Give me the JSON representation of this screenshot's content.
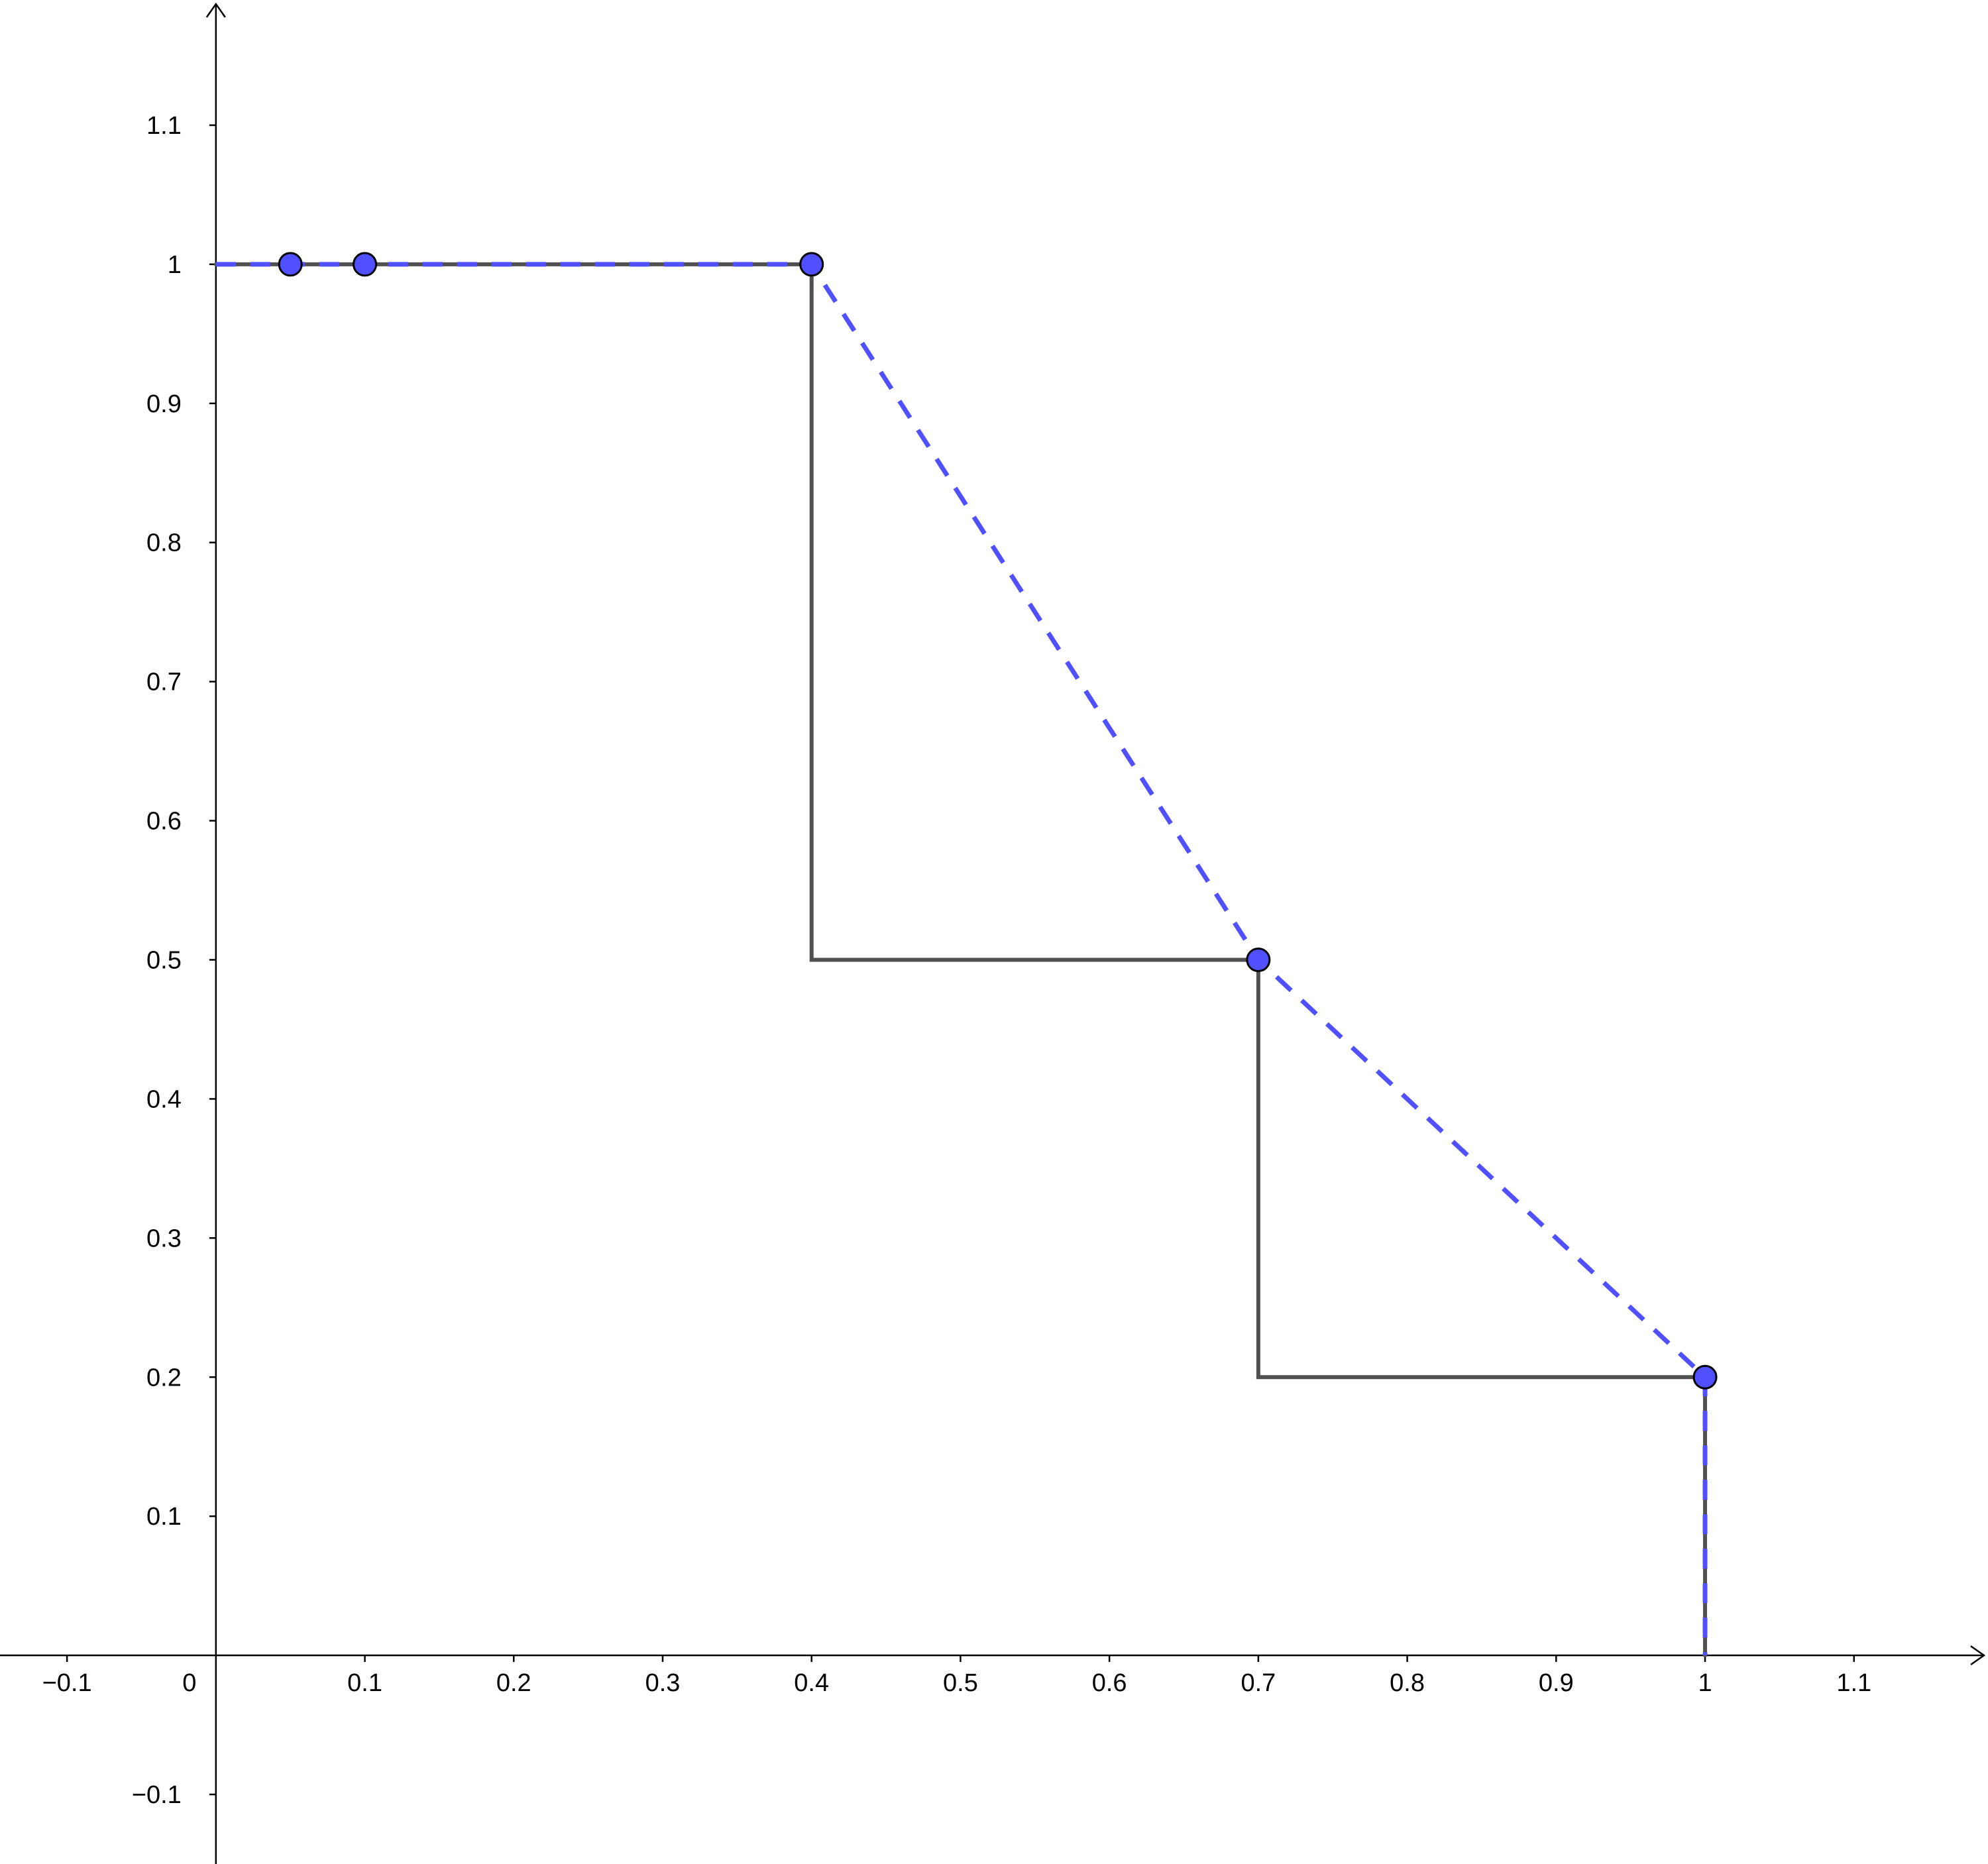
{
  "chart_data": {
    "type": "line",
    "xlim": [
      -0.145,
      1.19
    ],
    "ylim": [
      -0.15,
      1.19
    ],
    "x_ticks": [
      {
        "value": -0.1,
        "label": "−0.1"
      },
      {
        "value": 0,
        "label": "0"
      },
      {
        "value": 0.1,
        "label": "0.1"
      },
      {
        "value": 0.2,
        "label": "0.2"
      },
      {
        "value": 0.3,
        "label": "0.3"
      },
      {
        "value": 0.4,
        "label": "0.4"
      },
      {
        "value": 0.5,
        "label": "0.5"
      },
      {
        "value": 0.6,
        "label": "0.6"
      },
      {
        "value": 0.7,
        "label": "0.7"
      },
      {
        "value": 0.8,
        "label": "0.8"
      },
      {
        "value": 0.9,
        "label": "0.9"
      },
      {
        "value": 1,
        "label": "1"
      },
      {
        "value": 1.1,
        "label": "1.1"
      }
    ],
    "y_ticks": [
      {
        "value": -0.1,
        "label": "−0.1"
      },
      {
        "value": 0.1,
        "label": "0.1"
      },
      {
        "value": 0.2,
        "label": "0.2"
      },
      {
        "value": 0.3,
        "label": "0.3"
      },
      {
        "value": 0.4,
        "label": "0.4"
      },
      {
        "value": 0.5,
        "label": "0.5"
      },
      {
        "value": 0.6,
        "label": "0.6"
      },
      {
        "value": 0.7,
        "label": "0.7"
      },
      {
        "value": 0.8,
        "label": "0.8"
      },
      {
        "value": 0.9,
        "label": "0.9"
      },
      {
        "value": 1,
        "label": "1"
      },
      {
        "value": 1.1,
        "label": "1.1"
      }
    ],
    "grid": false,
    "series": [
      {
        "style": "step",
        "color": "#505050",
        "x": [
          0,
          0.4,
          0.4,
          0.7,
          0.7,
          1,
          1
        ],
        "y": [
          1,
          1,
          0.5,
          0.5,
          0.2,
          0.2,
          0
        ]
      },
      {
        "style": "dashed",
        "color": "#5050ff",
        "x": [
          0,
          0.4,
          0.7,
          1,
          1
        ],
        "y": [
          1,
          1,
          0.5,
          0.2,
          0
        ]
      },
      {
        "style": "points",
        "color": "#5050ff",
        "x": [
          0.05,
          0.1,
          0.4,
          0.7,
          1
        ],
        "y": [
          1,
          1,
          1,
          0.5,
          0.2
        ]
      }
    ]
  }
}
